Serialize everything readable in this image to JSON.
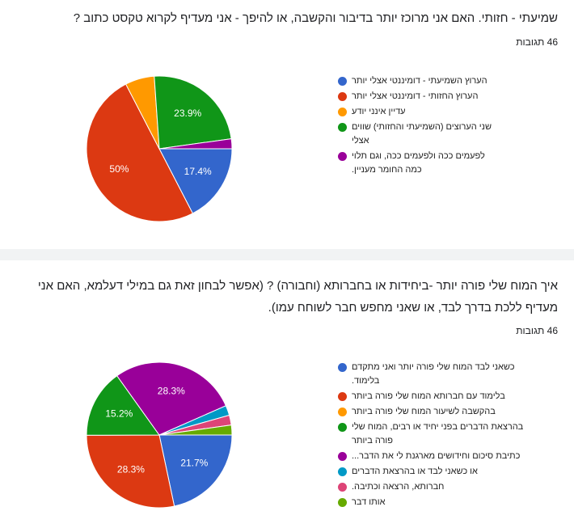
{
  "chart_data": [
    {
      "type": "pie",
      "title": "שמיעתי - חזותי. האם אני מרוכז יותר בדיבור והקשבה, או להיפך - אני מעדיף לקרוא טקסט כתוב ?",
      "subtitle": "46 תגובות",
      "categories": [
        "הערוץ השמיעתי - דומיננטי אצלי יותר",
        "הערוץ החזותי - דומיננטי אצלי יותר",
        "עדיין אינני יודע",
        "שני הערוצים (השמיעתי והחזותי) שווים אצלי",
        "לפעמים ככה ולפעמים ככה, וגם תלוי כמה החומר מעניין."
      ],
      "values": [
        17.4,
        50,
        6.5,
        23.9,
        2.2
      ],
      "value_labels": [
        "17.4%",
        "50%",
        null,
        "23.9%",
        null
      ],
      "colors": [
        "#3366cc",
        "#dc3912",
        "#ff9900",
        "#109618",
        "#990099"
      ]
    },
    {
      "type": "pie",
      "title": "איך המוח שלי פורה יותר -ביחידות או בחברותא (וחבורה) ? (אפשר לבחון זאת גם במילי דעלמא, האם אני מעדיף ללכת בדרך לבד, או שאני מחפש חבר לשוחח עמו).",
      "subtitle": "46 תגובות",
      "categories": [
        "כשאני לבד המוח שלי פורה יותר ואני מתקדם בלימוד.",
        "בלימוד עם חברותא המוח שלי פורה ביותר",
        "בהקשבה לשיעור המוח שלי פורה ביותר",
        "בהרצאת הדברים בפני יחיד או רבים, המוח שלי פורה ביותר",
        "כתיבת סיכום וחידושים מארגנת לי את הדבר...",
        "או כשאני לבד או בהרצאת הדברים",
        "חברותא, הרצאה וכתיבה.",
        "אותו דבר"
      ],
      "values": [
        21.7,
        28.3,
        0,
        15.2,
        28.3,
        2.2,
        2.2,
        2.2
      ],
      "value_labels": [
        "21.7%",
        "28.3%",
        null,
        "15.2%",
        "28.3%",
        null,
        null,
        null
      ],
      "colors": [
        "#3366cc",
        "#dc3912",
        "#ff9900",
        "#109618",
        "#990099",
        "#0099c6",
        "#dd4477",
        "#66aa00"
      ]
    }
  ]
}
